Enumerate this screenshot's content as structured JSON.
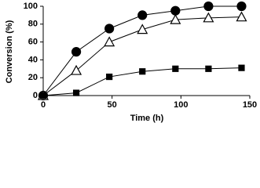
{
  "chart_data": {
    "type": "line",
    "x_label": "Time (h)",
    "y_label": "Conversion (%)",
    "x": [
      0,
      24,
      48,
      72,
      96,
      120,
      144
    ],
    "series": [
      {
        "color": "#000000",
        "marker": "circle",
        "filled": true,
        "values": [
          0,
          49,
          75,
          90,
          95,
          100,
          100
        ]
      },
      {
        "color": "#000000",
        "marker": "triangle",
        "filled": false,
        "values": [
          0,
          28,
          60,
          74,
          85,
          87,
          88
        ]
      },
      {
        "color": "#000000",
        "marker": "square",
        "filled": true,
        "values": [
          0,
          3,
          21,
          27,
          30,
          30,
          31
        ]
      }
    ],
    "xlim": [
      0,
      150
    ],
    "xticks": [
      0,
      50,
      100,
      150
    ],
    "ylim": [
      0,
      100
    ],
    "yticks": [
      0,
      20,
      40,
      60,
      80,
      100
    ],
    "grid": false
  }
}
